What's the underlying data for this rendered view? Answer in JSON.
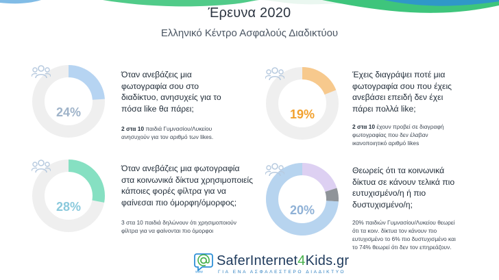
{
  "header": {
    "title": "Έρευνα 2020",
    "subtitle": "Ελληνικό Κέντρο Ασφαλούς Διαδικτύου"
  },
  "cards": [
    {
      "value": "24%",
      "fraction": 0.24,
      "accent": "#b6d4f2",
      "question": [
        "Όταν ανεβάζεις μια",
        "φωτογραφία σου στο",
        "διαδίκτυο, ανησυχείς για το",
        "πόσα like θα πάρει;"
      ],
      "note_bold": "2 στα 10",
      "note": [
        " παιδιά Γυμνασίου/Λυκείου",
        "ανησυχούν για τον αριθμό των likes."
      ]
    },
    {
      "value": "19%",
      "fraction": 0.19,
      "accent": "#f7c98d",
      "question": [
        "Έχεις διαγράψει ποτέ μια",
        "φωτογραφία σου που έχεις",
        "ανεβάσει επειδή δεν έχει",
        "πάρει πολλά like;"
      ],
      "note_bold": "2 στα 10",
      "note": [
        " έχουν προβεί σε διαγραφή",
        "φωτογραφίας που δεν έλαβαν",
        "ικανοποιητικό αριθμό likes"
      ]
    },
    {
      "value": "28%",
      "fraction": 0.28,
      "accent": "#86e0c2",
      "question": [
        "Όταν ανεβάζεις μια φωτογραφία",
        "στα κοινωνικά δίκτυα χρησιμοποιείς",
        "κάποιες φορές φίλτρα για να",
        "φαίνεσαι πιο όμορφη/όμορφος;"
      ],
      "note_bold": "",
      "note": [
        "3 στα 10 παιδιά δηλώνουν ότι χρησιμοποιούν",
        "φίλτρα για να φαίνονται πιο όμορφοι"
      ]
    },
    {
      "value": "20%",
      "fraction": 0.2,
      "accent": "#b7d4ef",
      "question": [
        "Θεωρείς ότι τα κοινωνικά",
        "δίκτυα σε κάνουν τελικά πιο",
        "ευτυχισμένο/η ή πιο",
        "δυστυχισμένο/η;"
      ],
      "note_bold": "",
      "note": [
        "20% παιδιών Γυμνασίου/Λυκείου θεωρεί",
        "ότι τα κοιν. δίκτυα τον κάνουν πιο",
        "ευτυχισμένο το 6% πιο δυστυχισμένο και",
        "το 74% θεωρεί ότι δεν τον επηρεάζουν."
      ]
    }
  ],
  "donut4_segments": [
    {
      "label": "πιο ευτυχισμένο",
      "percent": 20,
      "color": "#ddd0f2"
    },
    {
      "label": "πιο δυστυχισμένο",
      "percent": 6,
      "color": "#8f9499"
    },
    {
      "label": "δεν τον επηρεάζουν",
      "percent": 74,
      "color": "#b7d4ef"
    }
  ],
  "colors": {
    "track": "#efefef",
    "pct1": "#9fb3c9",
    "pct2": "#f2a12e",
    "pct3": "#8ac9dc",
    "pct4": "#8fb1d6",
    "people": "#b7cadf",
    "wave_green": "#3ec57c",
    "wave_blue": "#2d8fd6"
  },
  "footer": {
    "brand_a": "SaferInternet",
    "brand_num": "4",
    "brand_b": "Kids.gr",
    "tagline": "ΓΙΑ ΕΝΑ ΑΣΦΑΛΕΣΤΕΡΟ ΔΙΑΔΙΚΤΥΟ",
    "logo_text": "www"
  }
}
